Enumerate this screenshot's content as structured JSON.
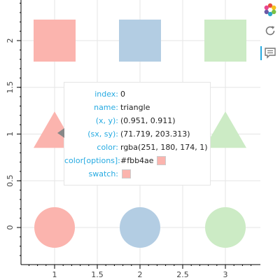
{
  "chart_data": {
    "type": "scatter",
    "title": "",
    "xlabel": "",
    "ylabel": "",
    "xlim": [
      0.63,
      3.3
    ],
    "ylim": [
      -0.45,
      2.45
    ],
    "x_ticks": [
      "1",
      "1.5",
      "2",
      "2.5",
      "3"
    ],
    "x_tick_values": [
      1,
      1.5,
      2,
      2.5,
      3
    ],
    "y_ticks": [
      "0",
      "0.5",
      "1",
      "1.5",
      "2"
    ],
    "y_tick_values": [
      0,
      0.5,
      1,
      1.5,
      2
    ],
    "grid": true,
    "points": [
      {
        "x": 1,
        "y": 2,
        "marker": "square",
        "color": "#fbb4ae"
      },
      {
        "x": 2,
        "y": 2,
        "marker": "square",
        "color": "#b3cde3"
      },
      {
        "x": 3,
        "y": 2,
        "marker": "square",
        "color": "#ccebc5"
      },
      {
        "x": 1,
        "y": 1,
        "marker": "triangle",
        "color": "#fbb4ae"
      },
      {
        "x": 2,
        "y": 1,
        "marker": "triangle",
        "color": "#b3cde3"
      },
      {
        "x": 3,
        "y": 1,
        "marker": "triangle",
        "color": "#ccebc5"
      },
      {
        "x": 1,
        "y": 0,
        "marker": "circle",
        "color": "#fbb4ae"
      },
      {
        "x": 2,
        "y": 0,
        "marker": "circle",
        "color": "#b3cde3"
      },
      {
        "x": 3,
        "y": 0,
        "marker": "circle",
        "color": "#ccebc5"
      }
    ]
  },
  "tooltip": {
    "rows": [
      {
        "key": "index:",
        "value": "0"
      },
      {
        "key": "name:",
        "value": "triangle"
      },
      {
        "key": "(x, y):",
        "value": "(0.951, 0.911)"
      },
      {
        "key": "(sx, sy):",
        "value": "(71.719, 203.313)"
      },
      {
        "key": "color:",
        "value": "rgba(251, 180, 174, 1)"
      },
      {
        "key": "color[options]:",
        "value": "#fbb4ae"
      },
      {
        "key": "swatch:",
        "value": ""
      }
    ],
    "swatch_color": "#fbb4ae"
  },
  "toolbar": {
    "tools": [
      "bokeh-logo-icon",
      "reset-icon",
      "hover-icon"
    ]
  }
}
